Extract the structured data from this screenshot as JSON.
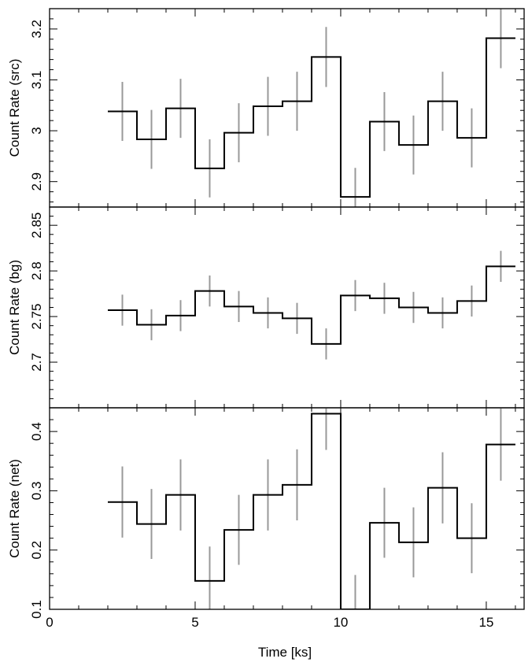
{
  "chart_data": {
    "type": "line",
    "subtype": "stepped-histogram-with-errorbars",
    "xlabel": "Time [ks]",
    "xlim": [
      0,
      16.3
    ],
    "x_ticks": [
      0,
      5,
      10,
      15
    ],
    "bin_width": 1,
    "bin_starts": [
      2,
      3,
      4,
      5,
      6,
      7,
      8,
      9,
      10,
      11,
      12,
      13,
      14,
      15
    ],
    "grid": false,
    "colors": {
      "line": "#000000",
      "error_bar": "#999999"
    },
    "panels": [
      {
        "name": "src",
        "ylabel": "Count Rate (src)",
        "ylim": [
          2.85,
          3.24
        ],
        "y_ticks": [
          2.9,
          3,
          3.1,
          3.2
        ],
        "y_tick_labels": [
          "2.9",
          "3",
          "3.1",
          "3.2"
        ],
        "values": [
          3.038,
          2.983,
          3.044,
          2.926,
          2.996,
          3.048,
          3.058,
          3.145,
          2.87,
          3.018,
          2.972,
          3.058,
          2.986,
          3.182
        ],
        "errors": [
          0.058,
          0.058,
          0.058,
          0.057,
          0.058,
          0.058,
          0.058,
          0.059,
          0.057,
          0.058,
          0.058,
          0.058,
          0.058,
          0.059
        ]
      },
      {
        "name": "bg",
        "ylabel": "Count Rate (bg)",
        "ylim": [
          2.65,
          2.87
        ],
        "y_ticks": [
          2.7,
          2.75,
          2.8,
          2.85
        ],
        "y_tick_labels": [
          "2.7",
          "2.75",
          "2.8",
          "2.85"
        ],
        "values": [
          2.757,
          2.741,
          2.751,
          2.778,
          2.761,
          2.754,
          2.748,
          2.72,
          2.773,
          2.77,
          2.76,
          2.754,
          2.767,
          2.805
        ],
        "errors": [
          0.017,
          0.017,
          0.017,
          0.017,
          0.017,
          0.017,
          0.017,
          0.017,
          0.017,
          0.017,
          0.017,
          0.017,
          0.017,
          0.017
        ]
      },
      {
        "name": "net",
        "ylabel": "Count Rate (net)",
        "ylim": [
          0.1,
          0.44
        ],
        "y_ticks": [
          0.1,
          0.2,
          0.3,
          0.4
        ],
        "y_tick_labels": [
          "0.1",
          "0.2",
          "0.3",
          "0.4"
        ],
        "values": [
          0.281,
          0.244,
          0.293,
          0.148,
          0.234,
          0.293,
          0.31,
          0.43,
          0.1,
          0.246,
          0.213,
          0.305,
          0.22,
          0.378
        ],
        "errors": [
          0.06,
          0.059,
          0.06,
          0.058,
          0.059,
          0.06,
          0.06,
          0.061,
          0.058,
          0.059,
          0.059,
          0.06,
          0.059,
          0.061
        ]
      }
    ]
  }
}
